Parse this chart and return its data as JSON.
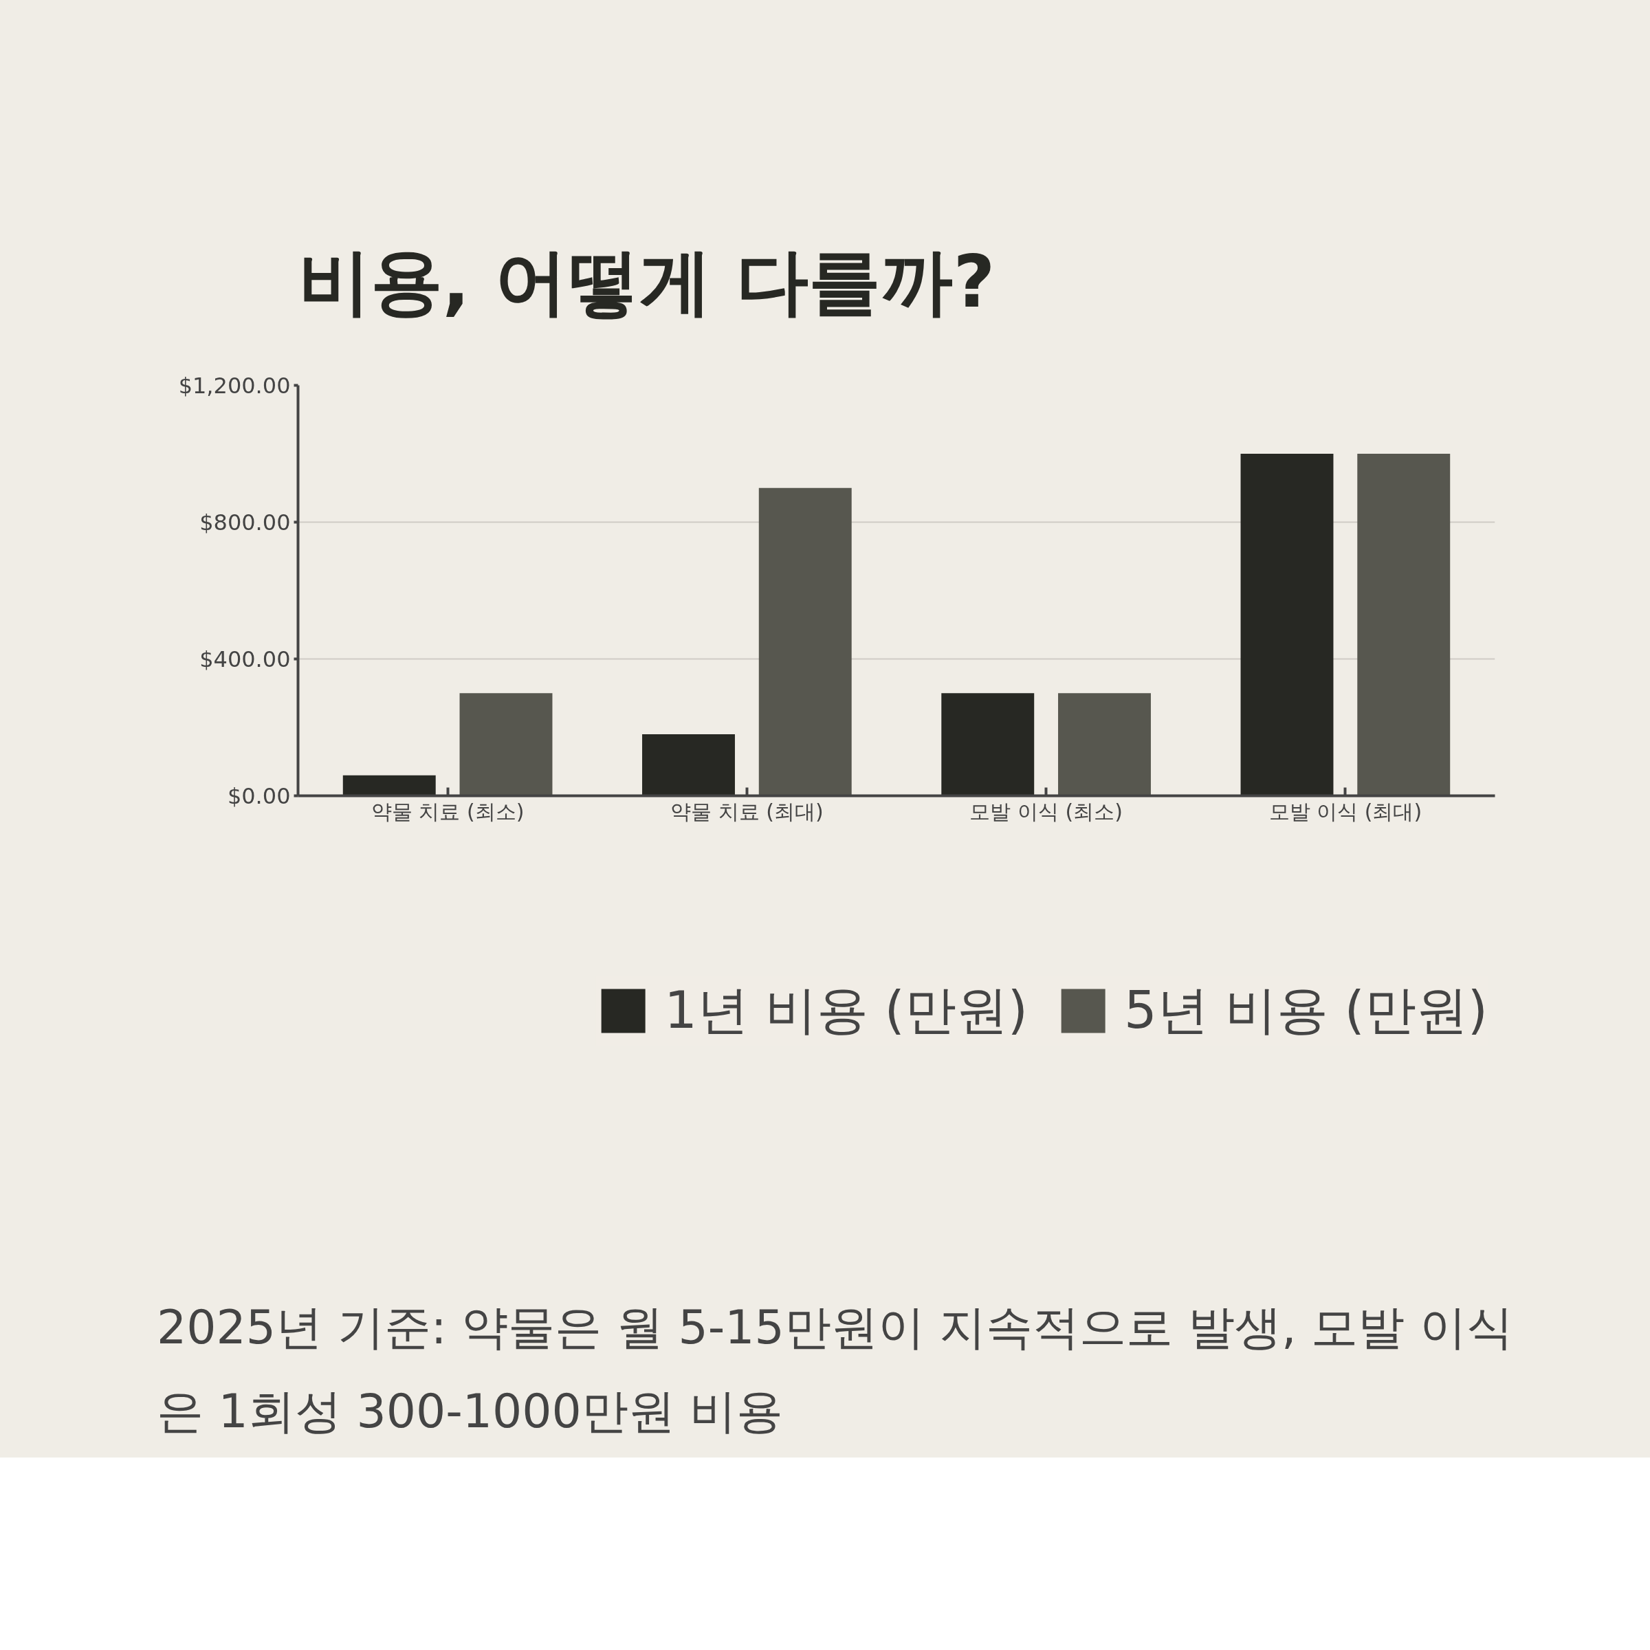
{
  "chart_data": {
    "type": "bar",
    "title": "비용, 어떻게 다를까?",
    "categories": [
      "약물 치료 (최소)",
      "약물 치료 (최대)",
      "모발 이식 (최소)",
      "모발 이식 (최대)"
    ],
    "series": [
      {
        "name": "1년 비용 (만원)",
        "color": "#272823",
        "values": [
          60,
          180,
          300,
          1000
        ]
      },
      {
        "name": "5년 비용 (만원)",
        "color": "#57574f",
        "values": [
          300,
          900,
          300,
          1000
        ]
      }
    ],
    "ylim": [
      0,
      1200
    ],
    "yticks": [
      {
        "value": 0,
        "label": "$0.00"
      },
      {
        "value": 400,
        "label": "$400.00"
      },
      {
        "value": 800,
        "label": "$800.00"
      },
      {
        "value": 1200,
        "label": "$1,200.00"
      }
    ],
    "grid": "y",
    "legend": "bottom",
    "annotations": [
      "2025년 기준: 약물은 월 5-15만원이 지속적으로 발생, 모발 이식은 1회성 300-1000만원 비용"
    ]
  }
}
